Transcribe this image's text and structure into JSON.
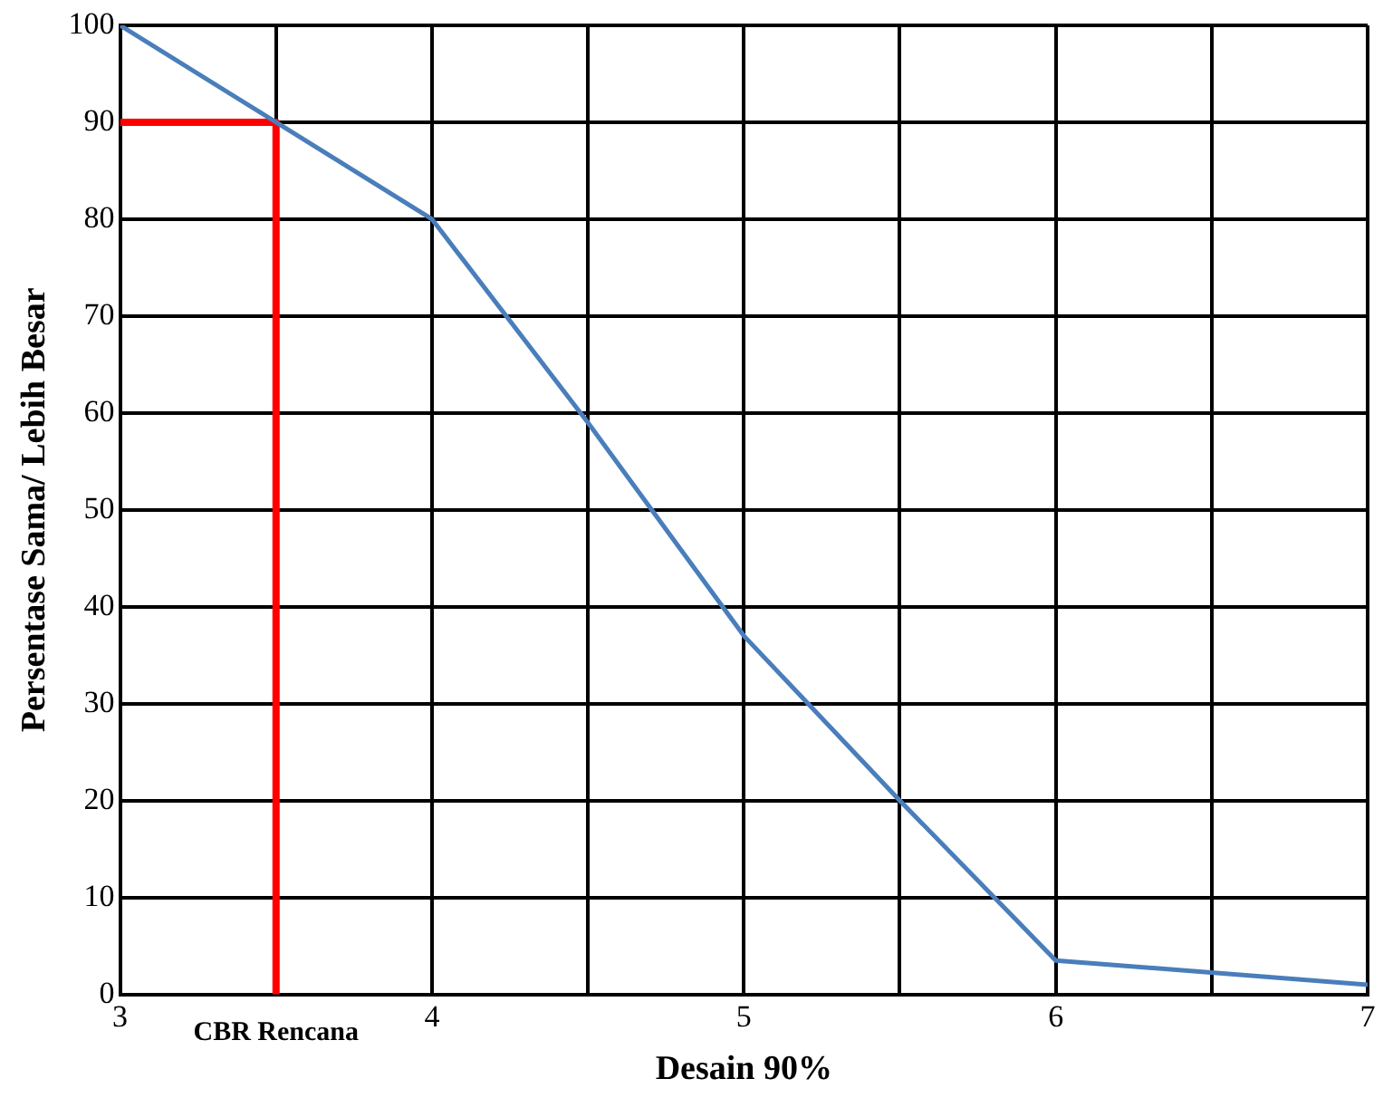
{
  "chart_data": {
    "type": "line",
    "xlabel": "Desain 90%",
    "ylabel": "Persentase Sama/ Lebih Besar",
    "xlim": [
      3,
      7
    ],
    "xticks": [
      3,
      {
        "value": 3.5,
        "label": null
      },
      4,
      {
        "value": 4.5,
        "label": null
      },
      5,
      {
        "value": 5.5,
        "label": null
      },
      6,
      {
        "value": 6.5,
        "label": null
      },
      7
    ],
    "ylim": [
      0,
      100
    ],
    "yticks": [
      0,
      10,
      20,
      30,
      40,
      50,
      60,
      70,
      80,
      90,
      100
    ],
    "grid": true,
    "marker": "none",
    "line_style": "solid",
    "series": [
      {
        "color": "#4a7ebb",
        "x": [
          3,
          3.5,
          4,
          4.5,
          5,
          5.5,
          6,
          7
        ],
        "values": [
          100,
          90,
          80,
          59,
          37,
          20,
          3.5,
          1
        ]
      },
      {
        "color": "#ff0000",
        "x": [
          3,
          3.5,
          3.5
        ],
        "values": [
          90,
          90,
          0
        ]
      }
    ],
    "annotations": [
      {
        "text": "CBR Rencana",
        "x": 3.5,
        "y": 0
      }
    ]
  }
}
